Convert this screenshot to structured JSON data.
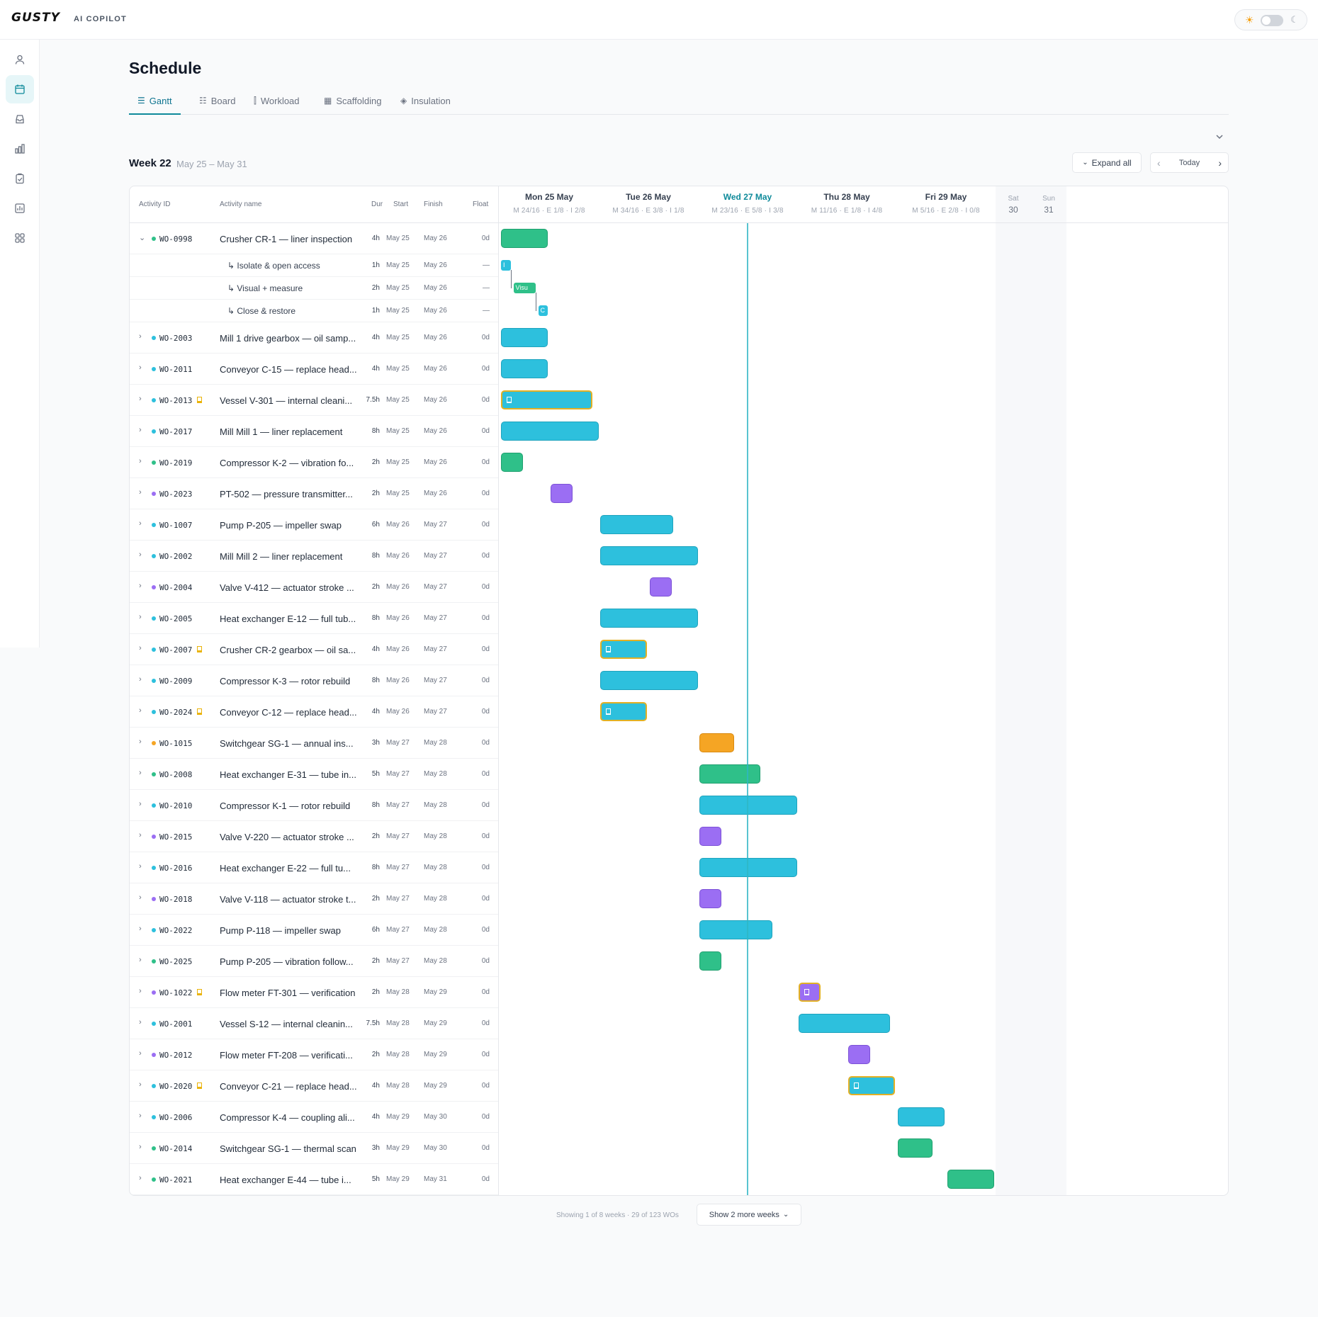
{
  "app": {
    "logo": "GUSTY",
    "subtitle": "AI COPILOT"
  },
  "theme_toggle": {
    "state": "light",
    "sun_icon": "sun-icon",
    "moon_icon": "moon-icon"
  },
  "sidebar": {
    "items": [
      {
        "icon": "user-icon",
        "active": false
      },
      {
        "icon": "calendar-icon",
        "active": true
      },
      {
        "icon": "inbox-icon",
        "active": false
      },
      {
        "icon": "bar-chart-icon",
        "active": false
      },
      {
        "icon": "clipboard-check-icon",
        "active": false
      },
      {
        "icon": "report-chart-icon",
        "active": false
      },
      {
        "icon": "grid-icon",
        "active": false
      }
    ]
  },
  "page": {
    "title": "Schedule"
  },
  "tabs": [
    {
      "label": "Gantt",
      "icon": "gantt-icon",
      "active": true
    },
    {
      "label": "Board",
      "icon": "board-icon",
      "active": false
    },
    {
      "label": "Workload",
      "icon": "workload-icon",
      "active": false
    },
    {
      "label": "Scaffolding",
      "icon": "scaffolding-icon",
      "active": false
    },
    {
      "label": "Insulation",
      "icon": "insulation-icon",
      "active": false
    }
  ],
  "week": {
    "label": "Week 22",
    "range": "May 25 – May 31"
  },
  "toolbar": {
    "expand_all": "Expand all",
    "today": "Today"
  },
  "columns": {
    "activity_id": "Activity ID",
    "activity_name": "Activity name",
    "dur": "Dur",
    "start": "Start",
    "finish": "Finish",
    "float": "Float"
  },
  "timeline": {
    "days": [
      {
        "name": "Mon 25 May",
        "stats": "M 24/16 · E 1/8 · I 2/8",
        "today": false
      },
      {
        "name": "Tue 26 May",
        "stats": "M 34/16 · E 3/8 · I 1/8",
        "today": false
      },
      {
        "name": "Wed 27 May",
        "stats": "M 23/16 · E 5/8 · I 3/8",
        "today": true
      },
      {
        "name": "Thu 28 May",
        "stats": "M 11/16 · E 1/8 · I 4/8",
        "today": false
      },
      {
        "name": "Fri 29 May",
        "stats": "M 5/16 · E 2/8 · I 0/8",
        "today": false
      }
    ],
    "weekend": [
      {
        "label": "Sat",
        "num": "30"
      },
      {
        "label": "Sun",
        "num": "31"
      }
    ],
    "hours_per_day": 8
  },
  "rows": [
    {
      "id": "WO-0998",
      "name": "Crusher CR-1 — liner inspection",
      "dur": "4h",
      "start": "May 25",
      "finish": "May 26",
      "float": "0d",
      "dot": "#2fc089",
      "flag": false,
      "expanded": true,
      "bar": {
        "day": 0,
        "start_h": 0,
        "hours": 4,
        "color": "green",
        "hl": false
      },
      "children": [
        {
          "name": "↳ Isolate & open access",
          "dur": "1h",
          "start": "May 25",
          "finish": "May 26",
          "float": "—",
          "bar": {
            "day": 0,
            "start_h": 0,
            "hours": 1,
            "color": "teal",
            "label": "I"
          }
        },
        {
          "name": "↳ Visual + measure",
          "dur": "2h",
          "start": "May 25",
          "finish": "May 26",
          "float": "—",
          "bar": {
            "day": 0,
            "start_h": 1,
            "hours": 2,
            "color": "green",
            "label": "Visu"
          }
        },
        {
          "name": "↳ Close & restore",
          "dur": "1h",
          "start": "May 25",
          "finish": "May 26",
          "float": "—",
          "bar": {
            "day": 0,
            "start_h": 3,
            "hours": 1,
            "color": "teal",
            "label": "C"
          }
        }
      ]
    },
    {
      "id": "WO-2003",
      "name": "Mill 1 drive gearbox — oil samp...",
      "dur": "4h",
      "start": "May 25",
      "finish": "May 26",
      "float": "0d",
      "dot": "#2dc0dd",
      "flag": false,
      "bar": {
        "day": 0,
        "start_h": 0,
        "hours": 4,
        "color": "teal",
        "hl": false
      }
    },
    {
      "id": "WO-2011",
      "name": "Conveyor C-15 — replace head...",
      "dur": "4h",
      "start": "May 25",
      "finish": "May 26",
      "float": "0d",
      "dot": "#2dc0dd",
      "flag": false,
      "bar": {
        "day": 0,
        "start_h": 0,
        "hours": 4,
        "color": "teal",
        "hl": false
      }
    },
    {
      "id": "WO-2013",
      "name": "Vessel V-301 — internal cleani...",
      "dur": "7.5h",
      "start": "May 25",
      "finish": "May 26",
      "float": "0d",
      "dot": "#2dc0dd",
      "flag": true,
      "bar": {
        "day": 0,
        "start_h": 0,
        "hours": 7.5,
        "color": "teal",
        "hl": true
      }
    },
    {
      "id": "WO-2017",
      "name": "Mill Mill 1 — liner replacement",
      "dur": "8h",
      "start": "May 25",
      "finish": "May 26",
      "float": "0d",
      "dot": "#2dc0dd",
      "flag": false,
      "bar": {
        "day": 0,
        "start_h": 0,
        "hours": 8,
        "color": "teal",
        "hl": false
      }
    },
    {
      "id": "WO-2019",
      "name": "Compressor K-2 — vibration fo...",
      "dur": "2h",
      "start": "May 25",
      "finish": "May 26",
      "float": "0d",
      "dot": "#2fc089",
      "flag": false,
      "bar": {
        "day": 0,
        "start_h": 0,
        "hours": 2,
        "color": "green",
        "hl": false
      }
    },
    {
      "id": "WO-2023",
      "name": "PT-502 — pressure transmitter...",
      "dur": "2h",
      "start": "May 25",
      "finish": "May 26",
      "float": "0d",
      "dot": "#9b6ef3",
      "flag": false,
      "bar": {
        "day": 0,
        "start_h": 4,
        "hours": 2,
        "color": "purple",
        "hl": false
      }
    },
    {
      "id": "WO-1007",
      "name": "Pump P-205 — impeller swap",
      "dur": "6h",
      "start": "May 26",
      "finish": "May 27",
      "float": "0d",
      "dot": "#2dc0dd",
      "flag": false,
      "bar": {
        "day": 1,
        "start_h": 0,
        "hours": 6,
        "color": "teal",
        "hl": false
      }
    },
    {
      "id": "WO-2002",
      "name": "Mill Mill 2 — liner replacement",
      "dur": "8h",
      "start": "May 26",
      "finish": "May 27",
      "float": "0d",
      "dot": "#2dc0dd",
      "flag": false,
      "bar": {
        "day": 1,
        "start_h": 0,
        "hours": 8,
        "color": "teal",
        "hl": false
      }
    },
    {
      "id": "WO-2004",
      "name": "Valve V-412 — actuator stroke ...",
      "dur": "2h",
      "start": "May 26",
      "finish": "May 27",
      "float": "0d",
      "dot": "#9b6ef3",
      "flag": false,
      "bar": {
        "day": 1,
        "start_h": 4,
        "hours": 2,
        "color": "purple",
        "hl": false
      }
    },
    {
      "id": "WO-2005",
      "name": "Heat exchanger E-12 — full tub...",
      "dur": "8h",
      "start": "May 26",
      "finish": "May 27",
      "float": "0d",
      "dot": "#2dc0dd",
      "flag": false,
      "bar": {
        "day": 1,
        "start_h": 0,
        "hours": 8,
        "color": "teal",
        "hl": false
      }
    },
    {
      "id": "WO-2007",
      "name": "Crusher CR-2 gearbox — oil sa...",
      "dur": "4h",
      "start": "May 26",
      "finish": "May 27",
      "float": "0d",
      "dot": "#2dc0dd",
      "flag": true,
      "bar": {
        "day": 1,
        "start_h": 0,
        "hours": 4,
        "color": "teal",
        "hl": true
      }
    },
    {
      "id": "WO-2009",
      "name": "Compressor K-3 — rotor rebuild",
      "dur": "8h",
      "start": "May 26",
      "finish": "May 27",
      "float": "0d",
      "dot": "#2dc0dd",
      "flag": false,
      "bar": {
        "day": 1,
        "start_h": 0,
        "hours": 8,
        "color": "teal",
        "hl": false
      }
    },
    {
      "id": "WO-2024",
      "name": "Conveyor C-12 — replace head...",
      "dur": "4h",
      "start": "May 26",
      "finish": "May 27",
      "float": "0d",
      "dot": "#2dc0dd",
      "flag": true,
      "bar": {
        "day": 1,
        "start_h": 0,
        "hours": 4,
        "color": "teal",
        "hl": true
      }
    },
    {
      "id": "WO-1015",
      "name": "Switchgear SG-1 — annual ins...",
      "dur": "3h",
      "start": "May 27",
      "finish": "May 28",
      "float": "0d",
      "dot": "#f5a524",
      "flag": false,
      "bar": {
        "day": 2,
        "start_h": 0,
        "hours": 3,
        "color": "orange",
        "hl": false
      }
    },
    {
      "id": "WO-2008",
      "name": "Heat exchanger E-31 — tube in...",
      "dur": "5h",
      "start": "May 27",
      "finish": "May 28",
      "float": "0d",
      "dot": "#2fc089",
      "flag": false,
      "bar": {
        "day": 2,
        "start_h": 0,
        "hours": 5,
        "color": "green",
        "hl": false
      }
    },
    {
      "id": "WO-2010",
      "name": "Compressor K-1 — rotor rebuild",
      "dur": "8h",
      "start": "May 27",
      "finish": "May 28",
      "float": "0d",
      "dot": "#2dc0dd",
      "flag": false,
      "bar": {
        "day": 2,
        "start_h": 0,
        "hours": 8,
        "color": "teal",
        "hl": false
      }
    },
    {
      "id": "WO-2015",
      "name": "Valve V-220 — actuator stroke ...",
      "dur": "2h",
      "start": "May 27",
      "finish": "May 28",
      "float": "0d",
      "dot": "#9b6ef3",
      "flag": false,
      "bar": {
        "day": 2,
        "start_h": 0,
        "hours": 2,
        "color": "purple",
        "hl": false
      }
    },
    {
      "id": "WO-2016",
      "name": "Heat exchanger E-22 — full tu...",
      "dur": "8h",
      "start": "May 27",
      "finish": "May 28",
      "float": "0d",
      "dot": "#2dc0dd",
      "flag": false,
      "bar": {
        "day": 2,
        "start_h": 0,
        "hours": 8,
        "color": "teal",
        "hl": false
      }
    },
    {
      "id": "WO-2018",
      "name": "Valve V-118 — actuator stroke t...",
      "dur": "2h",
      "start": "May 27",
      "finish": "May 28",
      "float": "0d",
      "dot": "#9b6ef3",
      "flag": false,
      "bar": {
        "day": 2,
        "start_h": 0,
        "hours": 2,
        "color": "purple",
        "hl": false
      }
    },
    {
      "id": "WO-2022",
      "name": "Pump P-118 — impeller swap",
      "dur": "6h",
      "start": "May 27",
      "finish": "May 28",
      "float": "0d",
      "dot": "#2dc0dd",
      "flag": false,
      "bar": {
        "day": 2,
        "start_h": 0,
        "hours": 6,
        "color": "teal",
        "hl": false
      }
    },
    {
      "id": "WO-2025",
      "name": "Pump P-205 — vibration follow...",
      "dur": "2h",
      "start": "May 27",
      "finish": "May 28",
      "float": "0d",
      "dot": "#2fc089",
      "flag": false,
      "bar": {
        "day": 2,
        "start_h": 0,
        "hours": 2,
        "color": "green",
        "hl": false
      }
    },
    {
      "id": "WO-1022",
      "name": "Flow meter FT-301 — verification",
      "dur": "2h",
      "start": "May 28",
      "finish": "May 29",
      "float": "0d",
      "dot": "#9b6ef3",
      "flag": true,
      "bar": {
        "day": 3,
        "start_h": 0,
        "hours": 2,
        "color": "purple",
        "hl": true
      }
    },
    {
      "id": "WO-2001",
      "name": "Vessel S-12 — internal cleanin...",
      "dur": "7.5h",
      "start": "May 28",
      "finish": "May 29",
      "float": "0d",
      "dot": "#2dc0dd",
      "flag": false,
      "bar": {
        "day": 3,
        "start_h": 0,
        "hours": 7.5,
        "color": "teal",
        "hl": false
      }
    },
    {
      "id": "WO-2012",
      "name": "Flow meter FT-208 — verificati...",
      "dur": "2h",
      "start": "May 28",
      "finish": "May 29",
      "float": "0d",
      "dot": "#9b6ef3",
      "flag": false,
      "bar": {
        "day": 3,
        "start_h": 4,
        "hours": 2,
        "color": "purple",
        "hl": false
      }
    },
    {
      "id": "WO-2020",
      "name": "Conveyor C-21 — replace head...",
      "dur": "4h",
      "start": "May 28",
      "finish": "May 29",
      "float": "0d",
      "dot": "#2dc0dd",
      "flag": true,
      "bar": {
        "day": 3,
        "start_h": 4,
        "hours": 4,
        "color": "teal",
        "hl": true
      }
    },
    {
      "id": "WO-2006",
      "name": "Compressor K-4 — coupling ali...",
      "dur": "4h",
      "start": "May 29",
      "finish": "May 30",
      "float": "0d",
      "dot": "#2dc0dd",
      "flag": false,
      "bar": {
        "day": 4,
        "start_h": 0,
        "hours": 4,
        "color": "teal",
        "hl": false
      }
    },
    {
      "id": "WO-2014",
      "name": "Switchgear SG-1 — thermal scan",
      "dur": "3h",
      "start": "May 29",
      "finish": "May 30",
      "float": "0d",
      "dot": "#2fc089",
      "flag": false,
      "bar": {
        "day": 4,
        "start_h": 0,
        "hours": 3,
        "color": "green",
        "hl": false
      }
    },
    {
      "id": "WO-2021",
      "name": "Heat exchanger E-44 — tube i...",
      "dur": "5h",
      "start": "May 29",
      "finish": "May 31",
      "float": "0d",
      "dot": "#2fc089",
      "flag": false,
      "bar": {
        "day": 4,
        "start_h": 4,
        "hours": 4,
        "color": "green",
        "hl": false
      }
    }
  ],
  "footer": {
    "text": "Showing 1 of 8 weeks · 29 of 123 WOs",
    "more_button": "Show 2 more weeks"
  }
}
